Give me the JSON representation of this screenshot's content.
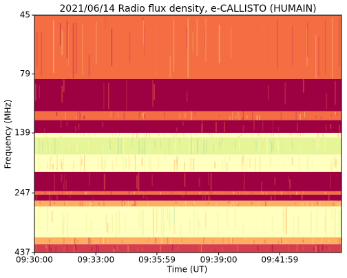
{
  "chart_data": {
    "type": "spectrogram",
    "title": "2021/06/14  Radio flux density, e-CALLISTO (HUMAIN)",
    "x_label": "Time (UT)",
    "y_label": "Frequency (MHz)",
    "xlim": [
      "09:30:00",
      "09:45:00"
    ],
    "xticks": [
      "09:30:00",
      "09:33:00",
      "09:35:59",
      "09:39:00",
      "09:41:59"
    ],
    "ylim": [
      45,
      437
    ],
    "yticks": [
      45,
      79,
      139,
      247,
      437
    ],
    "y_log": true,
    "y_inverted": true,
    "band_edges": [
      45,
      83,
      113,
      123,
      139,
      145,
      171,
      202,
      243,
      251,
      266,
      281,
      378,
      404,
      437
    ],
    "intensity": [
      0.3,
      0.05,
      0.3,
      0.05,
      0.65,
      0.85,
      0.65,
      0.05,
      0.35,
      0.05,
      0.4,
      0.7,
      0.4,
      0.2
    ],
    "colormap": [
      "#9e0142",
      "#d53e4f",
      "#f46d43",
      "#fdae61",
      "#fee08b",
      "#ffffbf",
      "#e6f598",
      "#abdda4"
    ]
  }
}
